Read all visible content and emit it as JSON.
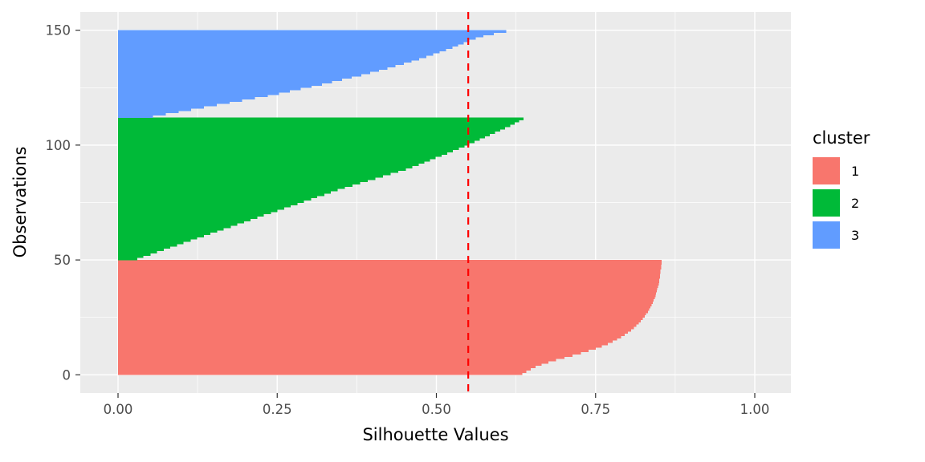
{
  "chart_data": {
    "type": "bar",
    "orientation": "horizontal",
    "title": "",
    "xlabel": "Silhouette Values",
    "ylabel": "Observations",
    "xlim": [
      -0.06,
      1.06
    ],
    "ylim": [
      0,
      150
    ],
    "x_ticks": {
      "values": [
        0,
        0.25,
        0.5,
        0.75,
        1.0
      ],
      "labels": [
        "0.00",
        "0.25",
        "0.50",
        "0.75",
        "1.00"
      ]
    },
    "y_ticks": {
      "values": [
        0,
        50,
        100,
        150
      ],
      "labels": [
        "0",
        "50",
        "100",
        "150"
      ]
    },
    "x_minor": [
      0.125,
      0.375,
      0.625,
      0.875
    ],
    "y_minor": [
      25,
      75,
      125
    ],
    "grid": true,
    "panel_bg": "#EBEBEB",
    "grid_color": "#FFFFFF",
    "tick_label_color": "#4D4D4D",
    "avg_silhouette_line": {
      "x": 0.55,
      "color": "#FF0000",
      "style": "dashed"
    },
    "legend": {
      "title": "cluster",
      "position": "right",
      "entries": [
        {
          "label": "1",
          "color": "#F8766D"
        },
        {
          "label": "2",
          "color": "#00BA38"
        },
        {
          "label": "3",
          "color": "#619CFF"
        }
      ]
    },
    "series": [
      {
        "name": "1",
        "color": "#F8766D",
        "obs_start": 0,
        "values": [
          0.635,
          0.641,
          0.648,
          0.656,
          0.665,
          0.676,
          0.688,
          0.701,
          0.714,
          0.727,
          0.739,
          0.75,
          0.76,
          0.769,
          0.777,
          0.784,
          0.79,
          0.796,
          0.801,
          0.806,
          0.81,
          0.814,
          0.818,
          0.821,
          0.824,
          0.827,
          0.829,
          0.832,
          0.834,
          0.836,
          0.838,
          0.84,
          0.841,
          0.843,
          0.844,
          0.845,
          0.846,
          0.847,
          0.848,
          0.849,
          0.85,
          0.85,
          0.851,
          0.851,
          0.852,
          0.852,
          0.853,
          0.853,
          0.854,
          0.854
        ]
      },
      {
        "name": "2",
        "color": "#00BA38",
        "obs_start": 50,
        "values": [
          0.03,
          0.04,
          0.051,
          0.061,
          0.072,
          0.082,
          0.093,
          0.103,
          0.114,
          0.124,
          0.135,
          0.145,
          0.156,
          0.166,
          0.177,
          0.187,
          0.198,
          0.208,
          0.219,
          0.229,
          0.24,
          0.25,
          0.261,
          0.271,
          0.282,
          0.292,
          0.303,
          0.313,
          0.324,
          0.334,
          0.345,
          0.356,
          0.368,
          0.38,
          0.392,
          0.404,
          0.416,
          0.428,
          0.44,
          0.452,
          0.462,
          0.472,
          0.481,
          0.49,
          0.499,
          0.508,
          0.517,
          0.526,
          0.535,
          0.544,
          0.552,
          0.56,
          0.568,
          0.576,
          0.584,
          0.592,
          0.6,
          0.608,
          0.616,
          0.623,
          0.63,
          0.637
        ]
      },
      {
        "name": "3",
        "color": "#619CFF",
        "obs_start": 112,
        "values": [
          0.055,
          0.075,
          0.095,
          0.115,
          0.135,
          0.155,
          0.175,
          0.195,
          0.215,
          0.235,
          0.253,
          0.27,
          0.287,
          0.304,
          0.32,
          0.336,
          0.352,
          0.367,
          0.382,
          0.396,
          0.41,
          0.423,
          0.436,
          0.449,
          0.461,
          0.473,
          0.484,
          0.495,
          0.505,
          0.515,
          0.525,
          0.534,
          0.543,
          0.552,
          0.562,
          0.574,
          0.59,
          0.61
        ]
      }
    ]
  }
}
